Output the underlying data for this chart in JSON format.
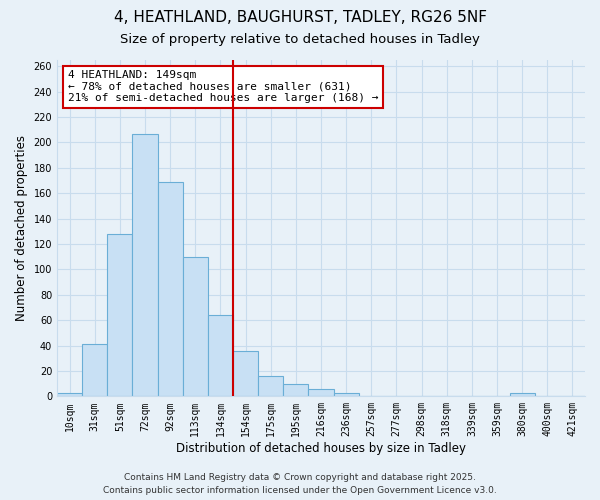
{
  "title": "4, HEATHLAND, BAUGHURST, TADLEY, RG26 5NF",
  "subtitle": "Size of property relative to detached houses in Tadley",
  "xlabel": "Distribution of detached houses by size in Tadley",
  "ylabel": "Number of detached properties",
  "bin_labels": [
    "10sqm",
    "31sqm",
    "51sqm",
    "72sqm",
    "92sqm",
    "113sqm",
    "134sqm",
    "154sqm",
    "175sqm",
    "195sqm",
    "216sqm",
    "236sqm",
    "257sqm",
    "277sqm",
    "298sqm",
    "318sqm",
    "339sqm",
    "359sqm",
    "380sqm",
    "400sqm",
    "421sqm"
  ],
  "bar_heights": [
    3,
    41,
    128,
    207,
    169,
    110,
    64,
    36,
    16,
    10,
    6,
    3,
    0,
    0,
    0,
    0,
    0,
    0,
    3,
    0,
    0
  ],
  "bar_color": "#c8e0f4",
  "bar_edge_color": "#6aaed6",
  "grid_color": "#c8dced",
  "background_color": "#e8f1f8",
  "vline_x": 6.5,
  "vline_color": "#cc0000",
  "annotation_line1": "4 HEATHLAND: 149sqm",
  "annotation_line2": "← 78% of detached houses are smaller (631)",
  "annotation_line3": "21% of semi-detached houses are larger (168) →",
  "annotation_box_color": "#ffffff",
  "annotation_box_edge_color": "#cc0000",
  "ylim": [
    0,
    265
  ],
  "yticks": [
    0,
    20,
    40,
    60,
    80,
    100,
    120,
    140,
    160,
    180,
    200,
    220,
    240,
    260
  ],
  "footer_line1": "Contains HM Land Registry data © Crown copyright and database right 2025.",
  "footer_line2": "Contains public sector information licensed under the Open Government Licence v3.0.",
  "title_fontsize": 11,
  "subtitle_fontsize": 9.5,
  "axis_label_fontsize": 8.5,
  "tick_fontsize": 7,
  "annotation_fontsize": 8,
  "footer_fontsize": 6.5
}
